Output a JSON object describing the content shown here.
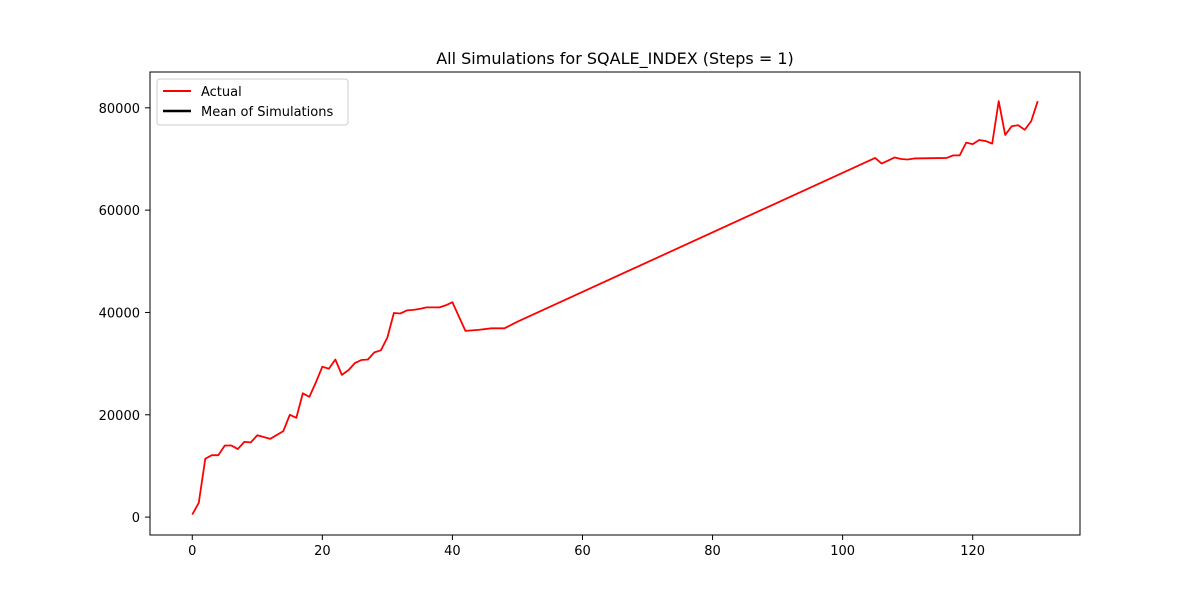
{
  "chart_data": {
    "type": "line",
    "title": "All Simulations for SQALE_INDEX (Steps = 1)",
    "xlabel": "",
    "ylabel": "",
    "xlim": [
      -6.5,
      136.5
    ],
    "ylim": [
      -3500,
      87000
    ],
    "xticks": [
      0,
      20,
      40,
      60,
      80,
      100,
      120
    ],
    "yticks": [
      0,
      20000,
      40000,
      60000,
      80000
    ],
    "grid": false,
    "legend": {
      "position": "upper-left",
      "entries": [
        "Actual",
        "Mean of Simulations"
      ]
    },
    "series": [
      {
        "name": "Actual",
        "color": "#ff0000",
        "points": [
          [
            0,
            500
          ],
          [
            1,
            2800
          ],
          [
            2,
            11400
          ],
          [
            3,
            12100
          ],
          [
            4,
            12100
          ],
          [
            5,
            14000
          ],
          [
            6,
            14000
          ],
          [
            7,
            13300
          ],
          [
            8,
            14700
          ],
          [
            9,
            14600
          ],
          [
            10,
            16000
          ],
          [
            12,
            15300
          ],
          [
            14,
            16800
          ],
          [
            15,
            20000
          ],
          [
            16,
            19400
          ],
          [
            17,
            24200
          ],
          [
            18,
            23500
          ],
          [
            19,
            26300
          ],
          [
            20,
            29400
          ],
          [
            21,
            29000
          ],
          [
            22,
            30800
          ],
          [
            23,
            27800
          ],
          [
            24,
            28700
          ],
          [
            25,
            30100
          ],
          [
            26,
            30700
          ],
          [
            27,
            30800
          ],
          [
            28,
            32200
          ],
          [
            29,
            32600
          ],
          [
            30,
            35100
          ],
          [
            31,
            39900
          ],
          [
            32,
            39800
          ],
          [
            33,
            40400
          ],
          [
            34,
            40500
          ],
          [
            35,
            40700
          ],
          [
            36,
            41000
          ],
          [
            38,
            41000
          ],
          [
            39,
            41400
          ],
          [
            40,
            42000
          ],
          [
            42,
            36400
          ],
          [
            44,
            36600
          ],
          [
            46,
            36900
          ],
          [
            48,
            36900
          ],
          [
            50,
            38200
          ],
          [
            105,
            70200
          ],
          [
            106,
            69100
          ],
          [
            107,
            69700
          ],
          [
            108,
            70300
          ],
          [
            109,
            70000
          ],
          [
            110,
            69900
          ],
          [
            111,
            70100
          ],
          [
            116,
            70200
          ],
          [
            117,
            70700
          ],
          [
            118,
            70700
          ],
          [
            119,
            73200
          ],
          [
            120,
            72900
          ],
          [
            121,
            73700
          ],
          [
            122,
            73500
          ],
          [
            123,
            73000
          ],
          [
            124,
            81300
          ],
          [
            125,
            74700
          ],
          [
            126,
            76400
          ],
          [
            127,
            76600
          ],
          [
            128,
            75700
          ],
          [
            129,
            77400
          ],
          [
            130,
            81300
          ]
        ]
      },
      {
        "name": "Mean of Simulations",
        "color": "#000000",
        "points": []
      }
    ]
  }
}
